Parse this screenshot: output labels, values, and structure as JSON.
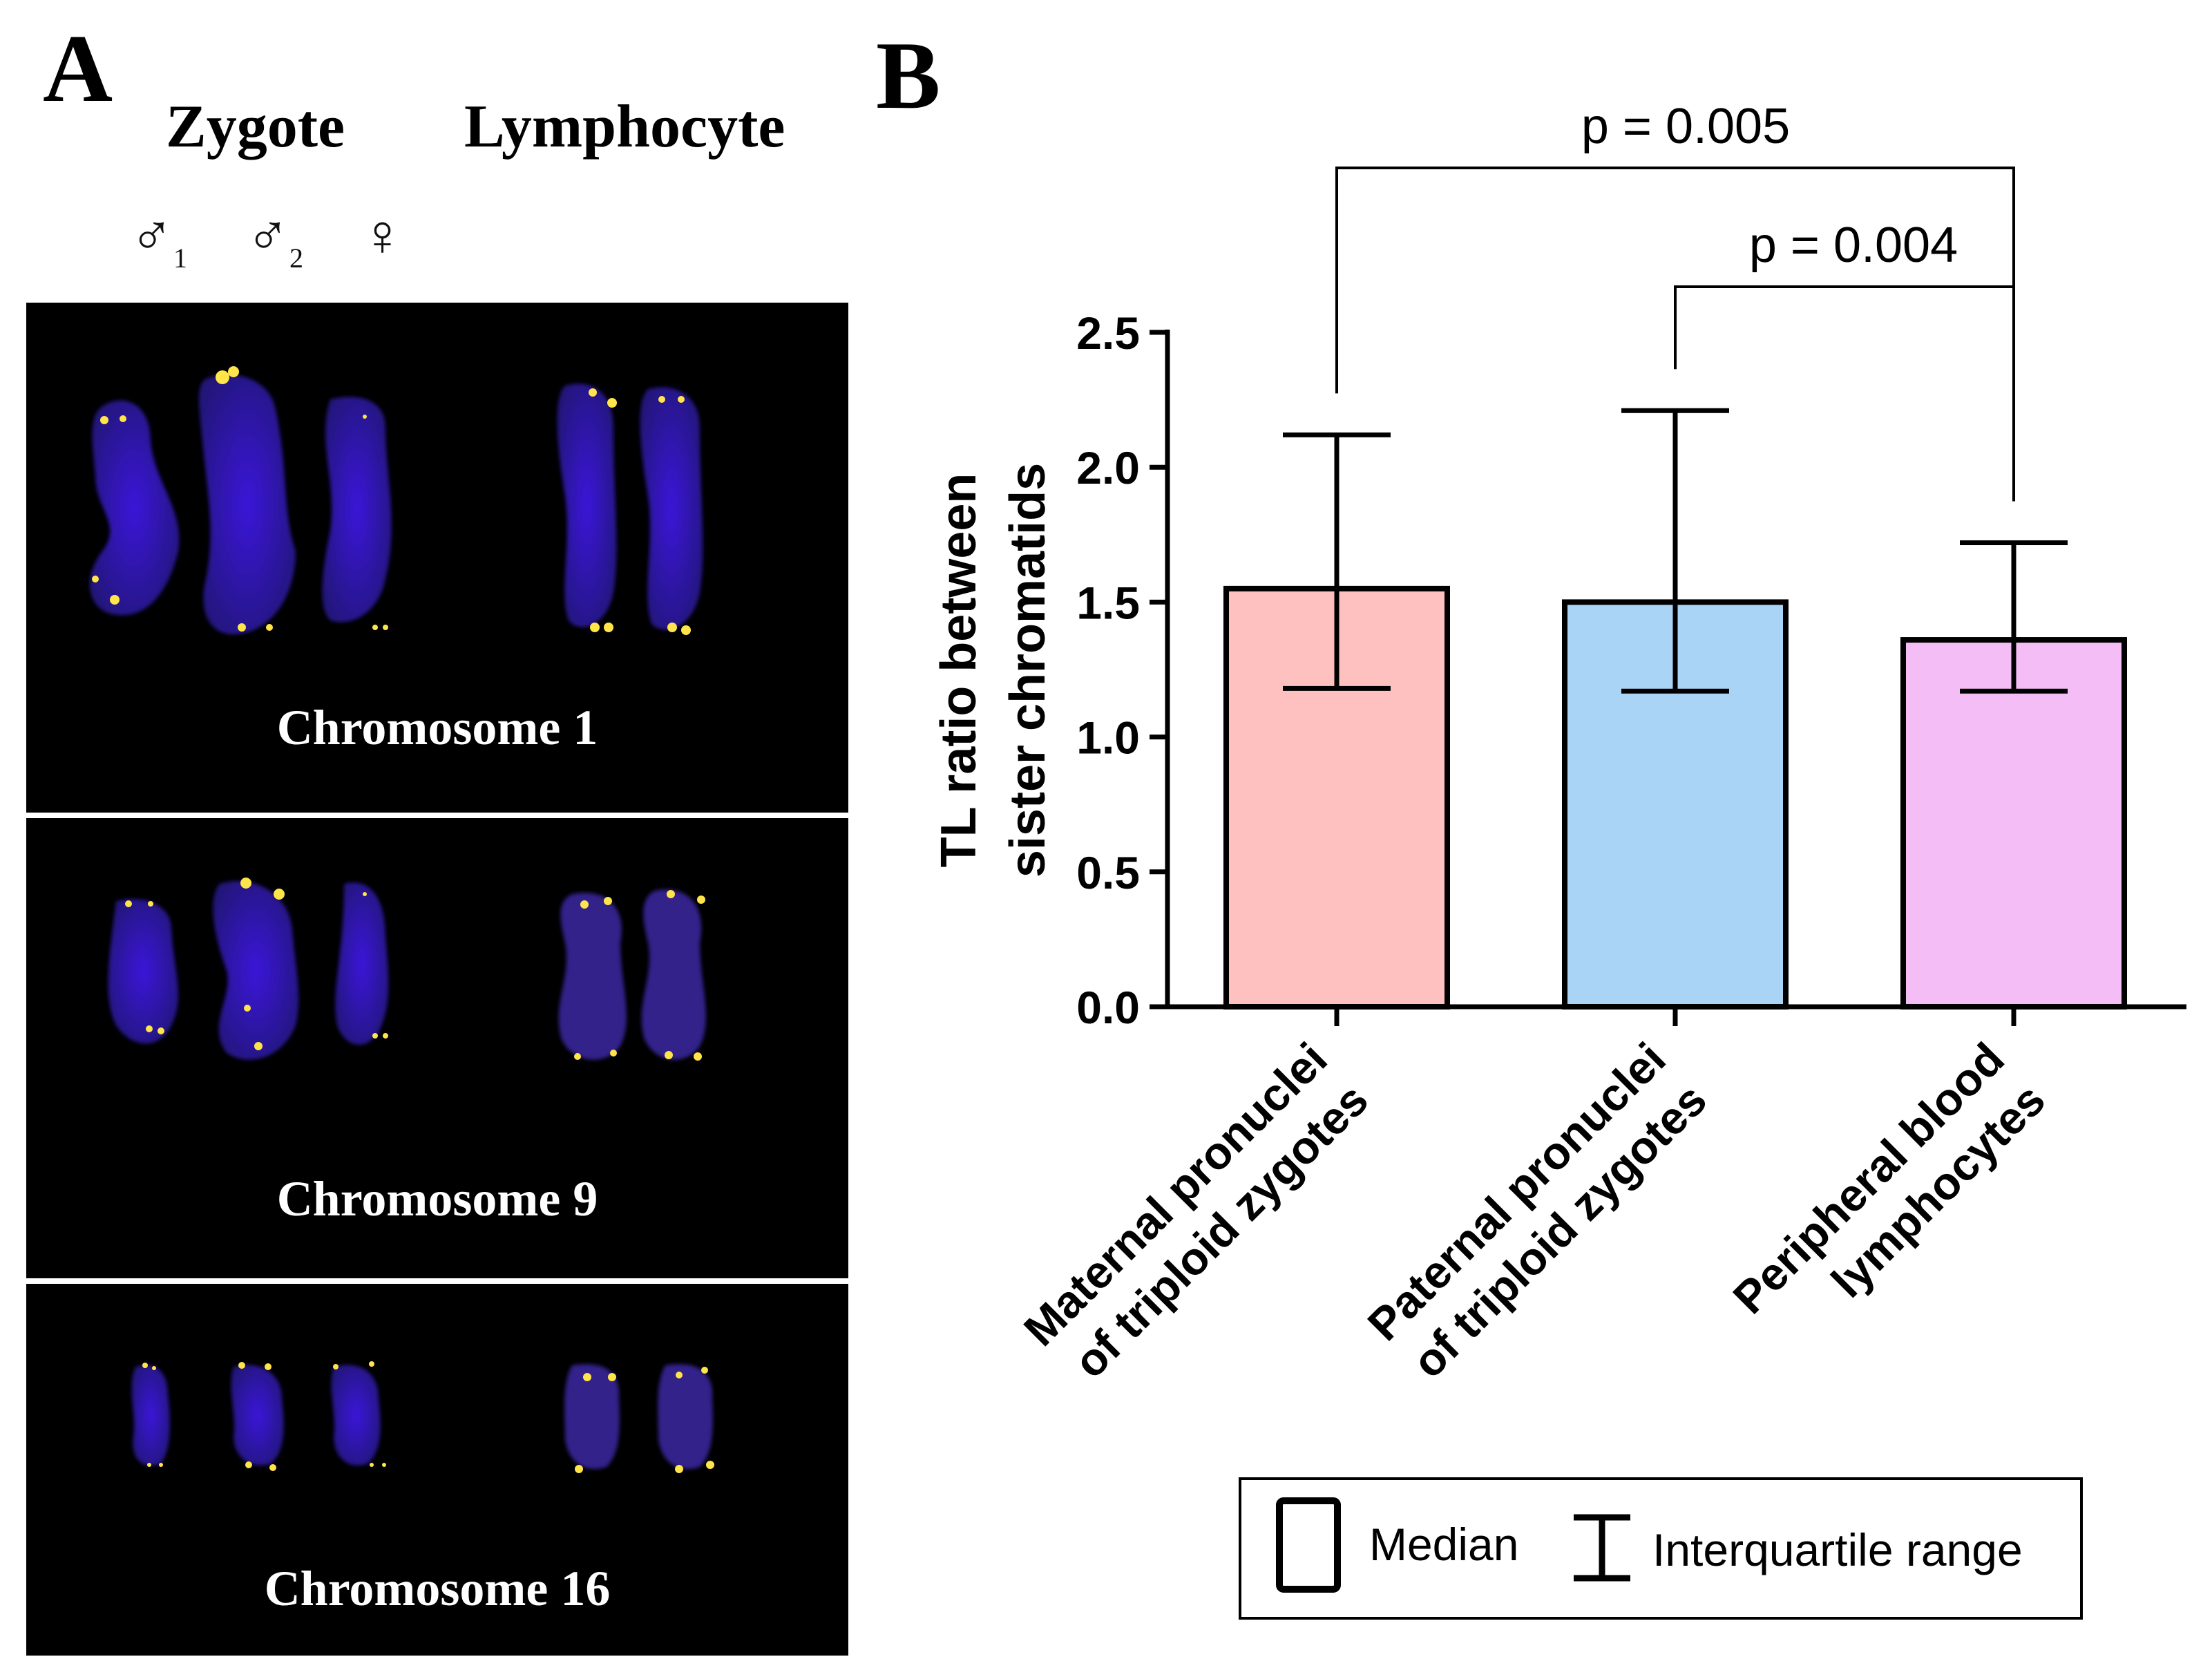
{
  "panel_a": {
    "label": "A",
    "column_headers": [
      "Zygote",
      "Lymphocyte"
    ],
    "pronuclei": [
      {
        "symbol": "♂",
        "subscript": "1"
      },
      {
        "symbol": "♂",
        "subscript": "2"
      },
      {
        "symbol": "♀",
        "subscript": ""
      }
    ],
    "rows": [
      {
        "label": "Chromosome 1"
      },
      {
        "label": "Chromosome 9"
      },
      {
        "label": "Chromosome 16"
      }
    ]
  },
  "chart_data": {
    "type": "bar",
    "panel_label": "B",
    "categories": [
      [
        "Maternal pronuclei",
        "of triploid zygotes"
      ],
      [
        "Paternal pronuclei",
        "of triploid zygotes"
      ],
      [
        "Peripheral blood",
        "lymphocytes"
      ]
    ],
    "values": [
      1.55,
      1.5,
      1.36
    ],
    "iqr_low": [
      1.18,
      1.17,
      1.17
    ],
    "iqr_high": [
      2.12,
      2.21,
      1.72
    ],
    "colors": [
      "#ffc0c0",
      "#aad4f5",
      "#f5bdf5"
    ],
    "ylabel": [
      "TL ratio between",
      "sister chromatids"
    ],
    "xlabel": "",
    "ylim": [
      0,
      2.5
    ],
    "yticks": [
      "0.0",
      "0.5",
      "1.0",
      "1.5",
      "2.0",
      "2.5"
    ],
    "significance": [
      {
        "from": 0,
        "to": 2,
        "label": "p = 0.005"
      },
      {
        "from": 1,
        "to": 2,
        "label": "p = 0.004"
      }
    ],
    "legend": {
      "position": "bottom",
      "items": [
        {
          "symbol": "bar-box",
          "label": "Median"
        },
        {
          "symbol": "error-bar",
          "label": "Interquartile range"
        }
      ]
    }
  }
}
